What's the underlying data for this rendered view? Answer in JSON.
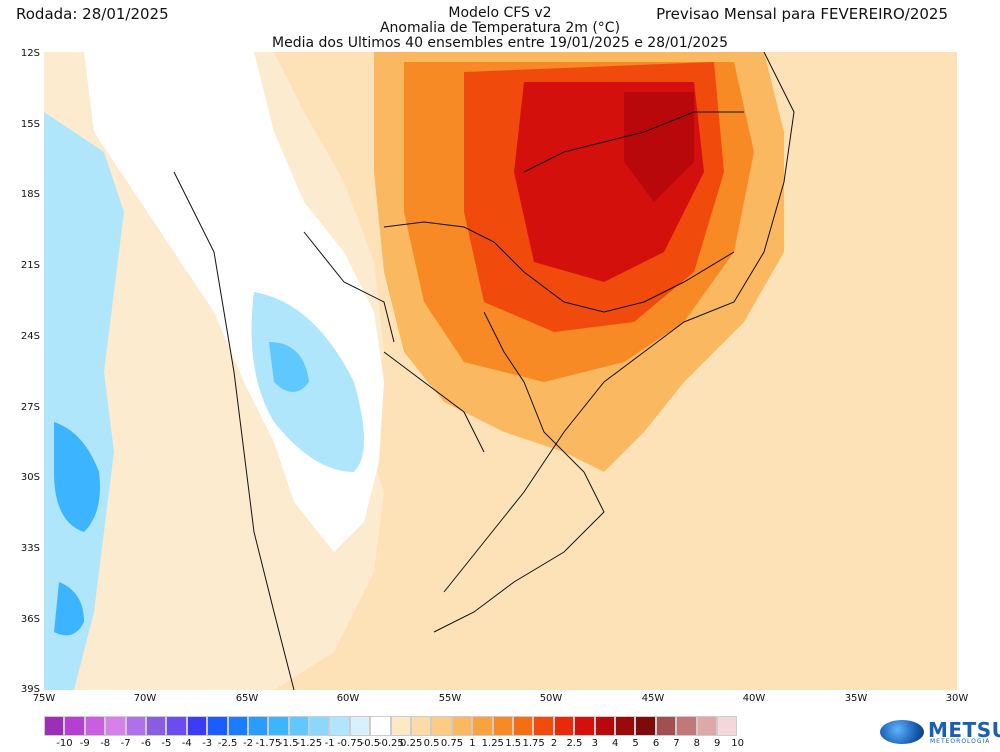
{
  "header": {
    "left": "Rodada: 28/01/2025",
    "right": "Previsao Mensal para FEVEREIRO/2025",
    "center_line1": "Modelo CFS v2",
    "center_line2": "Anomalia de Temperatura 2m (°C)",
    "center_line3": "Media dos Ultimos 40 ensembles entre 19/01/2025 e 28/01/2025"
  },
  "map": {
    "lat_labels": [
      "12S",
      "15S",
      "18S",
      "21S",
      "24S",
      "27S",
      "30S",
      "33S",
      "36S",
      "39S"
    ],
    "lon_labels": [
      "75W",
      "70W",
      "65W",
      "60W",
      "55W",
      "50W",
      "45W",
      "40W",
      "35W",
      "30W"
    ]
  },
  "colorbar": {
    "labels": [
      "-10",
      "-9",
      "-8",
      "-7",
      "-6",
      "-5",
      "-4",
      "-3",
      "-2.5",
      "-2",
      "-1.75",
      "-1.5",
      "-1.25",
      "-1",
      "-0.75",
      "-0.5",
      "-0.25",
      "0.25",
      "0.5",
      "0.75",
      "1",
      "1.25",
      "1.5",
      "1.75",
      "2",
      "2.5",
      "3",
      "4",
      "5",
      "6",
      "7",
      "8",
      "9",
      "10"
    ],
    "colors": [
      "#9b2fb8",
      "#b53fd0",
      "#c95ee0",
      "#d880ea",
      "#b070e8",
      "#8a5ce0",
      "#6a4cf0",
      "#3a3cf8",
      "#1a5cff",
      "#1a7cff",
      "#2b9cff",
      "#3cb4ff",
      "#5ec8ff",
      "#8ad8ff",
      "#b0e6fb",
      "#d8f2fb",
      "#ffffff",
      "#fde9c6",
      "#fcdca6",
      "#fbcc82",
      "#fab860",
      "#f9a23e",
      "#f78a24",
      "#f46e14",
      "#f04a0c",
      "#e82a0a",
      "#d4100c",
      "#b8080c",
      "#9a0a0a",
      "#7c0c0c",
      "#a05050",
      "#c07878",
      "#dca8a8",
      "#f2d8d8"
    ]
  },
  "logo": {
    "name": "METSUL",
    "sub": "METEOROLOGIA"
  }
}
